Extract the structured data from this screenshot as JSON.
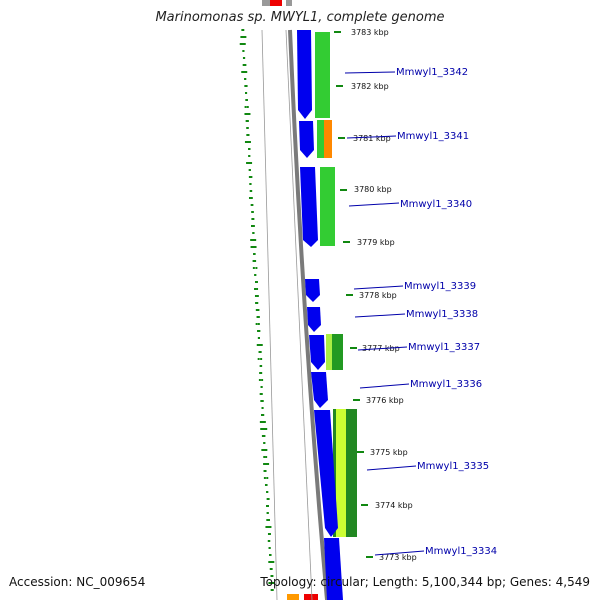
{
  "title": "Marinomonas sp. MWYL1, complete genome",
  "footer": {
    "accession": "Accession: NC_009654",
    "summary": "Topology: circular; Length: 5,100,344 bp; Genes: 4,549"
  },
  "ruler_ticks": [
    {
      "label": "3783 kbp"
    },
    {
      "label": "3782 kbp"
    },
    {
      "label": "3781 kbp"
    },
    {
      "label": "3780 kbp"
    },
    {
      "label": "3779 kbp"
    },
    {
      "label": "3778 kbp"
    },
    {
      "label": "3777 kbp"
    },
    {
      "label": "3776 kbp"
    },
    {
      "label": "3775 kbp"
    },
    {
      "label": "3774 kbp"
    },
    {
      "label": "3773 kbp"
    }
  ],
  "genes": [
    {
      "label": "Mmwyl1_3342"
    },
    {
      "label": "Mmwyl1_3341"
    },
    {
      "label": "Mmwyl1_3340"
    },
    {
      "label": "Mmwyl1_3339"
    },
    {
      "label": "Mmwyl1_3338"
    },
    {
      "label": "Mmwyl1_3337"
    },
    {
      "label": "Mmwyl1_3336"
    },
    {
      "label": "Mmwyl1_3335"
    },
    {
      "label": "Mmwyl1_3334"
    }
  ],
  "colors": {
    "cds": "#0000ee",
    "backbone": "#808080",
    "dotted_plot": "#118811",
    "label": "#0000aa",
    "green_track": "#33cc33",
    "orange_track": "#ff8800",
    "red_marker": "#ee0000"
  }
}
